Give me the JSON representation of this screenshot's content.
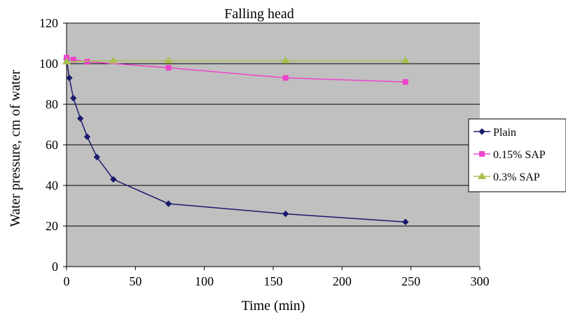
{
  "chart_data": {
    "type": "line",
    "title": "Falling head",
    "xlabel": "Time (min)",
    "ylabel": "Water pressure, cm of water",
    "xlim": [
      0,
      300
    ],
    "ylim": [
      0,
      120
    ],
    "xticks": [
      0,
      50,
      100,
      150,
      200,
      250,
      300
    ],
    "yticks": [
      0,
      20,
      40,
      60,
      80,
      100,
      120
    ],
    "grid": "horizontal",
    "background": "#c0c0c0",
    "legend_position": "right",
    "series": [
      {
        "name": "Plain",
        "color": "#1a1a6e",
        "marker": "diamond",
        "points": [
          [
            0,
            102
          ],
          [
            2,
            93
          ],
          [
            5,
            83
          ],
          [
            10,
            73
          ],
          [
            15,
            64
          ],
          [
            22,
            54
          ],
          [
            34,
            43
          ],
          [
            74,
            31
          ],
          [
            159,
            26
          ],
          [
            246,
            22
          ]
        ]
      },
      {
        "name": "0.15% SAP",
        "color": "#ee44cc",
        "marker": "square",
        "points": [
          [
            0,
            103
          ],
          [
            5,
            102
          ],
          [
            15,
            101
          ],
          [
            74,
            98
          ],
          [
            159,
            93
          ],
          [
            246,
            91
          ]
        ]
      },
      {
        "name": "0.3% SAP",
        "color": "#a8c050",
        "marker": "triangle",
        "points": [
          [
            0,
            101
          ],
          [
            34,
            101.5
          ],
          [
            74,
            101.5
          ],
          [
            159,
            101.5
          ],
          [
            246,
            101.5
          ]
        ]
      }
    ]
  }
}
